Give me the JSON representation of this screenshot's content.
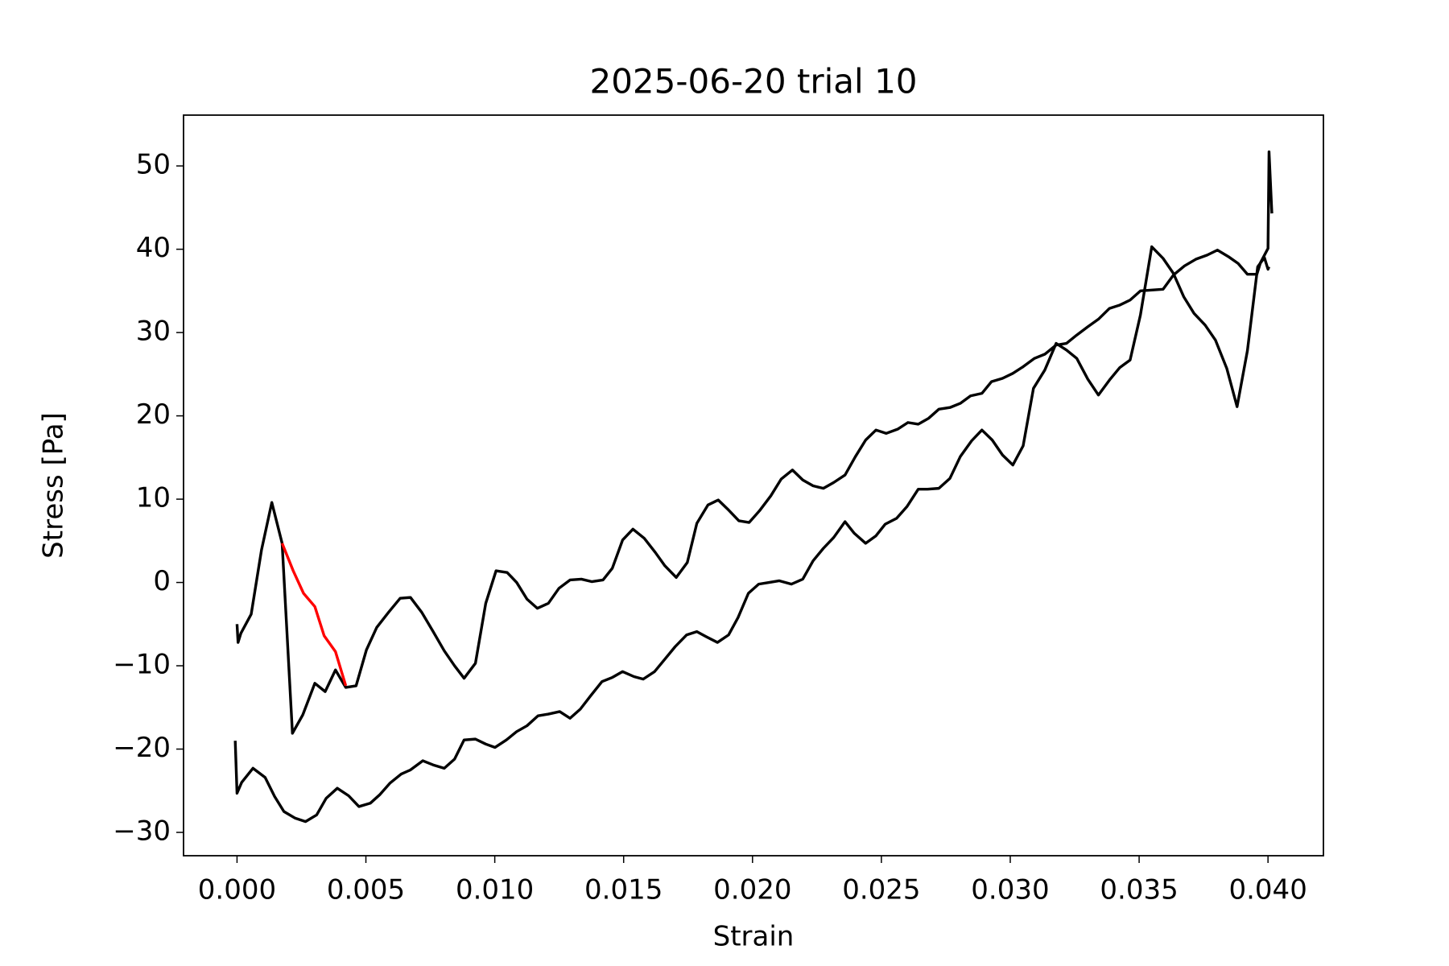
{
  "chart_data": {
    "type": "line",
    "title": "2025-06-20 trial 10",
    "x_label": "Strain",
    "y_label": "Stress [Pa]",
    "xlim": [
      -0.002075,
      0.04215
    ],
    "ylim": [
      -32.8,
      56.1
    ],
    "xticks": [
      {
        "value": 0,
        "label": "0.000"
      },
      {
        "value": 0.005,
        "label": "0.005"
      },
      {
        "value": 0.01,
        "label": "0.010"
      },
      {
        "value": 0.015,
        "label": "0.015"
      },
      {
        "value": 0.02,
        "label": "0.020"
      },
      {
        "value": 0.025,
        "label": "0.025"
      },
      {
        "value": 0.03,
        "label": "0.030"
      },
      {
        "value": 0.035,
        "label": "0.035"
      },
      {
        "value": 0.04,
        "label": "0.040"
      }
    ],
    "yticks": [
      {
        "value": -30,
        "label": "−30"
      },
      {
        "value": -20,
        "label": "−20"
      },
      {
        "value": -10,
        "label": "−10"
      },
      0,
      10,
      20,
      30,
      40,
      50
    ],
    "series": [
      {
        "color": "#000000",
        "x": [
          0,
          4e-05,
          0.00015,
          0.00055,
          0.00095,
          0.00135,
          0.00175,
          0.00215,
          0.00255,
          0.00302,
          0.00342,
          0.00382,
          0.00422,
          0.00462,
          0.00502,
          0.00542,
          0.0059,
          0.00633,
          0.00673,
          0.00717,
          0.00761,
          0.00804,
          0.00844,
          0.00881,
          0.00925,
          0.00965,
          0.01005,
          0.01048,
          0.01085,
          0.01125,
          0.01165,
          0.01208,
          0.01249,
          0.01292,
          0.01336,
          0.01376,
          0.0142,
          0.01456,
          0.01496,
          0.01536,
          0.0158,
          0.01623,
          0.0166,
          0.01704,
          0.01747,
          0.01784,
          0.01827,
          0.01867,
          0.01907,
          0.01947,
          0.01987,
          0.02027,
          0.02071,
          0.02111,
          0.02155,
          0.02195,
          0.02235,
          0.02275,
          0.02315,
          0.02359,
          0.02399,
          0.02439,
          0.02479,
          0.02519,
          0.02563,
          0.02603,
          0.02643,
          0.02683,
          0.02723,
          0.02766,
          0.02806,
          0.02846,
          0.0289,
          0.02927,
          0.0297,
          0.0301,
          0.0305,
          0.03094,
          0.03134,
          0.03178,
          0.03218,
          0.03258,
          0.03301,
          0.03342,
          0.03385,
          0.03425,
          0.03465,
          0.03505,
          0.03549,
          0.03593,
          0.03633,
          0.03676,
          0.0372,
          0.03764,
          0.03804,
          0.03847,
          0.03884,
          0.0392,
          0.03957,
          0.03971,
          0.04,
          0.04004,
          0.04015
        ],
        "values": [
          -5.0,
          -7.2,
          -6.1,
          -3.8,
          3.9,
          9.6,
          4.7,
          -18.1,
          -15.9,
          -12.1,
          -13.1,
          -10.5,
          -12.6,
          -12.4,
          -8.1,
          -5.4,
          -3.5,
          -1.9,
          -1.8,
          -3.6,
          -5.9,
          -8.2,
          -10.0,
          -11.5,
          -9.7,
          -2.5,
          1.4,
          1.2,
          0,
          -2.0,
          -3.1,
          -2.5,
          -0.7,
          0.3,
          0.4,
          0.1,
          0.3,
          1.7,
          5.1,
          6.4,
          5.3,
          3.6,
          2.0,
          0.6,
          2.4,
          7.1,
          9.3,
          9.9,
          8.7,
          7.4,
          7.2,
          8.6,
          10.4,
          12.4,
          13.5,
          12.3,
          11.6,
          11.3,
          12.0,
          12.9,
          15.1,
          17.1,
          18.3,
          17.9,
          18.4,
          19.2,
          19.0,
          19.7,
          20.8,
          21.0,
          21.5,
          22.4,
          22.7,
          24.1,
          24.5,
          25.1,
          25.9,
          26.9,
          27.4,
          28.5,
          28.7,
          29.7,
          30.7,
          31.6,
          32.9,
          33.3,
          33.9,
          35.0,
          35.1,
          35.2,
          36.9,
          38.0,
          38.8,
          39.3,
          39.9,
          39.1,
          38.3,
          37.0,
          37.0,
          38.4,
          40.1,
          51.7,
          44.3
        ]
      },
      {
        "color": "#000000",
        "x": [
          -7e-05,
          0,
          0.00018,
          0.00062,
          0.00109,
          0.00146,
          0.00182,
          0.00226,
          0.00266,
          0.00309,
          0.00346,
          0.00389,
          0.00433,
          0.00473,
          0.00517,
          0.00553,
          0.00593,
          0.00637,
          0.00673,
          0.00721,
          0.00761,
          0.00804,
          0.00844,
          0.00881,
          0.00925,
          0.00965,
          0.01001,
          0.01045,
          0.01085,
          0.01125,
          0.01168,
          0.01208,
          0.01252,
          0.01292,
          0.01332,
          0.01372,
          0.01416,
          0.01456,
          0.01496,
          0.0154,
          0.01576,
          0.0162,
          0.0166,
          0.017,
          0.01744,
          0.01784,
          0.0182,
          0.01864,
          0.01907,
          0.01944,
          0.01984,
          0.02024,
          0.02064,
          0.02104,
          0.02151,
          0.02195,
          0.02235,
          0.02275,
          0.02315,
          0.02359,
          0.02395,
          0.02439,
          0.02479,
          0.02515,
          0.02559,
          0.02599,
          0.02643,
          0.02679,
          0.02723,
          0.02766,
          0.02806,
          0.0285,
          0.0289,
          0.0293,
          0.0297,
          0.0301,
          0.0305,
          0.0309,
          0.03134,
          0.03178,
          0.03218,
          0.03258,
          0.03301,
          0.03342,
          0.03385,
          0.03425,
          0.03465,
          0.03505,
          0.03549,
          0.03593,
          0.03633,
          0.03673,
          0.03713,
          0.03756,
          0.03796,
          0.0384,
          0.0388,
          0.0392,
          0.0396,
          0.03986,
          0.04,
          0.04004
        ],
        "values": [
          -19.0,
          -25.3,
          -24.0,
          -22.3,
          -23.4,
          -25.7,
          -27.5,
          -28.3,
          -28.7,
          -27.9,
          -25.9,
          -24.7,
          -25.6,
          -26.9,
          -26.5,
          -25.5,
          -24.1,
          -23.0,
          -22.5,
          -21.4,
          -21.9,
          -22.3,
          -21.2,
          -18.9,
          -18.8,
          -19.4,
          -19.8,
          -18.9,
          -17.9,
          -17.2,
          -16.0,
          -15.8,
          -15.5,
          -16.3,
          -15.2,
          -13.6,
          -11.9,
          -11.4,
          -10.7,
          -11.3,
          -11.6,
          -10.7,
          -9.2,
          -7.7,
          -6.3,
          -5.9,
          -6.5,
          -7.2,
          -6.3,
          -4.2,
          -1.3,
          -0.2,
          0,
          0.2,
          -0.2,
          0.4,
          2.6,
          4.1,
          5.4,
          7.3,
          5.9,
          4.7,
          5.6,
          7.0,
          7.7,
          9.1,
          11.2,
          11.2,
          11.3,
          12.5,
          15.1,
          17.0,
          18.3,
          17.1,
          15.3,
          14.1,
          16.4,
          23.3,
          25.5,
          28.7,
          27.9,
          26.9,
          24.4,
          22.5,
          24.3,
          25.8,
          26.7,
          32.1,
          40.3,
          38.9,
          37.1,
          34.3,
          32.3,
          30.9,
          29.1,
          25.7,
          21.1,
          27.8,
          37.9,
          39.0,
          37.6,
          37.9
        ]
      },
      {
        "color": "#ff0000",
        "x": [
          0.00175,
          0.00218,
          0.00258,
          0.00302,
          0.00338,
          0.00382,
          0.00422
        ],
        "values": [
          4.7,
          1.4,
          -1.3,
          -2.9,
          -6.4,
          -8.3,
          -12.4
        ]
      }
    ]
  }
}
